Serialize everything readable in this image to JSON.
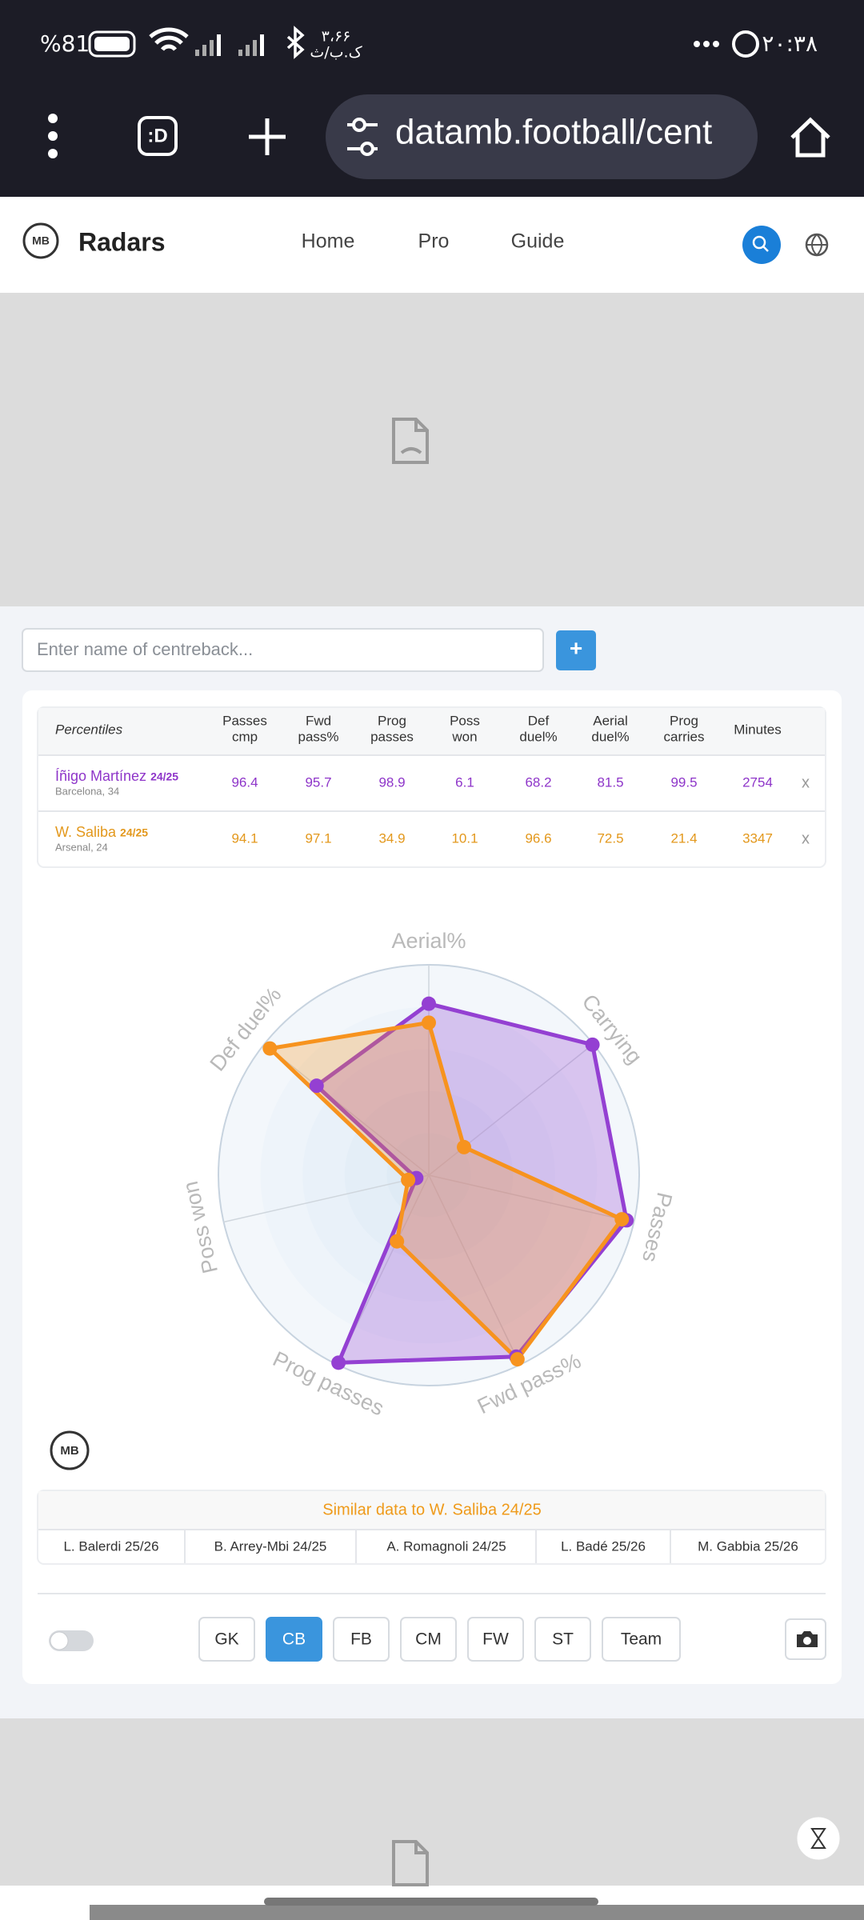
{
  "status_bar": {
    "battery": "%81",
    "speed": "۳،۶۶",
    "speed_unit": "ک.ب/ث",
    "time": "۲۰:۳۸"
  },
  "browser": {
    "tab_icon": ":D",
    "url": "datamb.football/cent"
  },
  "nav": {
    "logo": "MB",
    "brand": "Radars",
    "links": [
      "Home",
      "Pro",
      "Guide"
    ]
  },
  "search": {
    "placeholder": "Enter name of centreback...",
    "add_button": "+"
  },
  "table": {
    "headers": [
      [
        "Percentiles"
      ],
      [
        "Passes",
        "cmp"
      ],
      [
        "Fwd",
        "pass%"
      ],
      [
        "Prog",
        "passes"
      ],
      [
        "Poss",
        "won"
      ],
      [
        "Def",
        "duel%"
      ],
      [
        "Aerial",
        "duel%"
      ],
      [
        "Prog",
        "carries"
      ],
      [
        "Minutes"
      ]
    ],
    "rows": [
      {
        "name": "Íñigo Martínez",
        "season": "24/25",
        "club": "Barcelona, 34",
        "color": "#8e35c9",
        "values": [
          96.4,
          95.7,
          98.9,
          6.1,
          68.2,
          81.5,
          99.5
        ],
        "minutes": 2754,
        "remove": "x"
      },
      {
        "name": "W. Saliba",
        "season": "24/25",
        "club": "Arsenal, 24",
        "color": "#e3981c",
        "values": [
          94.1,
          97.1,
          34.9,
          10.1,
          96.6,
          72.5,
          21.4
        ],
        "minutes": 3347,
        "remove": "x"
      }
    ]
  },
  "chart_data": {
    "type": "radar",
    "axes": [
      "Aerial%",
      "Carrying",
      "Passes",
      "Fwd pass%",
      "Prog passes",
      "Poss won",
      "Def duel%"
    ],
    "rlim": [
      0,
      100
    ],
    "series": [
      {
        "color": "#9440d2",
        "values": [
          81.5,
          99.5,
          96.4,
          95.7,
          98.9,
          6.1,
          68.2
        ]
      },
      {
        "color": "#f7931e",
        "values": [
          72.5,
          21.4,
          94.1,
          97.1,
          34.9,
          10.1,
          96.6
        ]
      }
    ]
  },
  "watermark": "MB",
  "similar": {
    "title": "Similar data to W. Saliba 24/25",
    "players": [
      "L. Balerdi 25/26",
      "B. Arrey-Mbi 24/25",
      "A. Romagnoli 24/25",
      "L. Badé 25/26",
      "M. Gabbia 25/26"
    ]
  },
  "positions": {
    "buttons": [
      "GK",
      "CB",
      "FB",
      "CM",
      "FW",
      "ST",
      "Team"
    ],
    "active": 1
  }
}
